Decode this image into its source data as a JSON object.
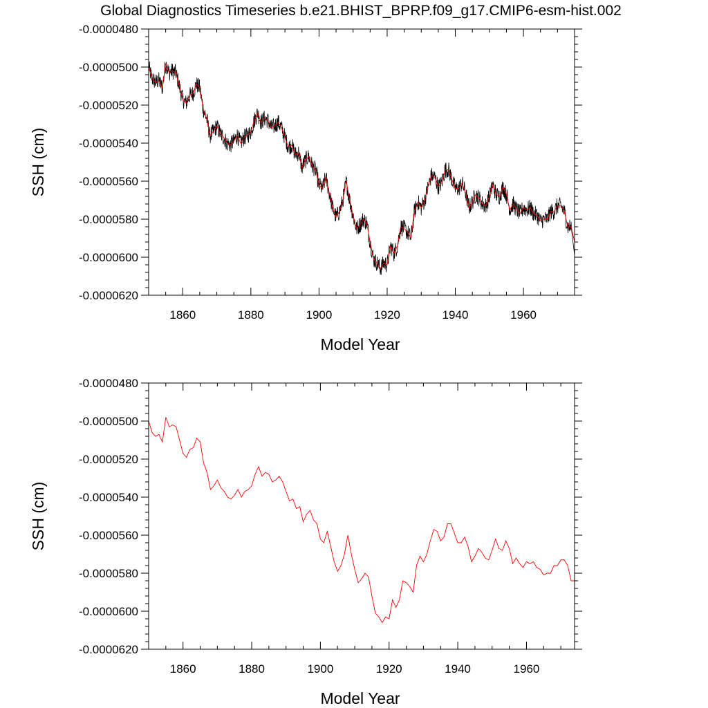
{
  "title": "Global Diagnostics Timeseries b.e21.BHIST_BPRP.f09_g17.CMIP6-esm-hist.002",
  "colors": {
    "monthly": "#000000",
    "annual": "#ff0000",
    "frame": "#000000"
  },
  "chart_data": [
    {
      "type": "line",
      "name": "top-panel",
      "xlabel": "Model Year",
      "ylabel": "SSH (cm)",
      "xlim": [
        1850,
        1975
      ],
      "ylim": [
        -6.2e-05,
        -4.8e-05
      ],
      "xticks": [
        1860,
        1880,
        1900,
        1920,
        1940,
        1960
      ],
      "xtick_labels": [
        "1860",
        "1880",
        "1900",
        "1920",
        "1940",
        "1960"
      ],
      "yticks": [
        -4.8e-05,
        -5e-05,
        -5.2e-05,
        -5.4e-05,
        -5.6e-05,
        -5.8e-05,
        -6e-05,
        -6.2e-05
      ],
      "ytick_labels": [
        "-0.0000480",
        "-0.0000500",
        "-0.0000520",
        "-0.0000540",
        "-0.0000560",
        "-0.0000580",
        "-0.0000600",
        "-0.0000620"
      ],
      "series": [
        {
          "name": "monthly",
          "color": "#000000",
          "note": "monthly values; noisy around annual mean (amplitude ~0.0000005)"
        },
        {
          "name": "annual",
          "color": "#ff0000",
          "note": "same as annual series in bottom panel"
        }
      ]
    },
    {
      "type": "line",
      "name": "bottom-panel",
      "xlabel": "Model Year",
      "ylabel": "SSH (cm)",
      "xlim": [
        1850,
        1974
      ],
      "ylim": [
        -6.2e-05,
        -4.8e-05
      ],
      "xticks": [
        1860,
        1880,
        1900,
        1920,
        1940,
        1960
      ],
      "xtick_labels": [
        "1860",
        "1880",
        "1900",
        "1920",
        "1940",
        "1960"
      ],
      "yticks": [
        -4.8e-05,
        -5e-05,
        -5.2e-05,
        -5.4e-05,
        -5.6e-05,
        -5.8e-05,
        -6e-05,
        -6.2e-05
      ],
      "ytick_labels": [
        "-0.0000480",
        "-0.0000500",
        "-0.0000520",
        "-0.0000540",
        "-0.0000560",
        "-0.0000580",
        "-0.0000600",
        "-0.0000620"
      ],
      "series": [
        {
          "name": "annual",
          "color": "#ff0000",
          "x": [
            1850,
            1851,
            1852,
            1853,
            1854,
            1855,
            1856,
            1857,
            1858,
            1859,
            1860,
            1861,
            1862,
            1863,
            1864,
            1865,
            1866,
            1867,
            1868,
            1869,
            1870,
            1871,
            1872,
            1873,
            1874,
            1875,
            1876,
            1877,
            1878,
            1879,
            1880,
            1881,
            1882,
            1883,
            1884,
            1885,
            1886,
            1887,
            1888,
            1889,
            1890,
            1891,
            1892,
            1893,
            1894,
            1895,
            1896,
            1897,
            1898,
            1899,
            1900,
            1901,
            1902,
            1903,
            1904,
            1905,
            1906,
            1907,
            1908,
            1909,
            1910,
            1911,
            1912,
            1913,
            1914,
            1915,
            1916,
            1917,
            1918,
            1919,
            1920,
            1921,
            1922,
            1923,
            1924,
            1925,
            1926,
            1927,
            1928,
            1929,
            1930,
            1931,
            1932,
            1933,
            1934,
            1935,
            1936,
            1937,
            1938,
            1939,
            1940,
            1941,
            1942,
            1943,
            1944,
            1945,
            1946,
            1947,
            1948,
            1949,
            1950,
            1951,
            1952,
            1953,
            1954,
            1955,
            1956,
            1957,
            1958,
            1959,
            1960,
            1961,
            1962,
            1963,
            1964,
            1965,
            1966,
            1967,
            1968,
            1969,
            1970,
            1971,
            1972,
            1973,
            1974
          ],
          "values": [
            -5e-05,
            -5.06e-05,
            -5.08e-05,
            -5.07e-05,
            -5.11e-05,
            -4.98e-05,
            -5.03e-05,
            -5.02e-05,
            -5.03e-05,
            -5.1e-05,
            -5.17e-05,
            -5.19e-05,
            -5.15e-05,
            -5.14e-05,
            -5.09e-05,
            -5.11e-05,
            -5.22e-05,
            -5.27e-05,
            -5.36e-05,
            -5.34e-05,
            -5.31e-05,
            -5.35e-05,
            -5.37e-05,
            -5.4e-05,
            -5.41e-05,
            -5.39e-05,
            -5.36e-05,
            -5.4e-05,
            -5.37e-05,
            -5.36e-05,
            -5.34e-05,
            -5.28e-05,
            -5.24e-05,
            -5.29e-05,
            -5.27e-05,
            -5.28e-05,
            -5.32e-05,
            -5.31e-05,
            -5.29e-05,
            -5.32e-05,
            -5.37e-05,
            -5.42e-05,
            -5.41e-05,
            -5.46e-05,
            -5.45e-05,
            -5.53e-05,
            -5.49e-05,
            -5.47e-05,
            -5.52e-05,
            -5.54e-05,
            -5.62e-05,
            -5.64e-05,
            -5.58e-05,
            -5.66e-05,
            -5.74e-05,
            -5.79e-05,
            -5.76e-05,
            -5.7e-05,
            -5.6e-05,
            -5.7e-05,
            -5.78e-05,
            -5.85e-05,
            -5.83e-05,
            -5.8e-05,
            -5.82e-05,
            -5.92e-05,
            -6.01e-05,
            -6.03e-05,
            -6.06e-05,
            -6.03e-05,
            -6.04e-05,
            -5.94e-05,
            -5.98e-05,
            -5.94e-05,
            -5.84e-05,
            -5.85e-05,
            -5.87e-05,
            -5.9e-05,
            -5.76e-05,
            -5.71e-05,
            -5.74e-05,
            -5.7e-05,
            -5.63e-05,
            -5.57e-05,
            -5.58e-05,
            -5.63e-05,
            -5.61e-05,
            -5.54e-05,
            -5.54e-05,
            -5.59e-05,
            -5.64e-05,
            -5.64e-05,
            -5.61e-05,
            -5.66e-05,
            -5.74e-05,
            -5.71e-05,
            -5.67e-05,
            -5.69e-05,
            -5.72e-05,
            -5.73e-05,
            -5.68e-05,
            -5.62e-05,
            -5.67e-05,
            -5.68e-05,
            -5.63e-05,
            -5.67e-05,
            -5.75e-05,
            -5.72e-05,
            -5.75e-05,
            -5.77e-05,
            -5.74e-05,
            -5.75e-05,
            -5.74e-05,
            -5.77e-05,
            -5.78e-05,
            -5.81e-05,
            -5.8e-05,
            -5.8e-05,
            -5.76e-05,
            -5.76e-05,
            -5.73e-05,
            -5.73e-05,
            -5.76e-05,
            -5.84e-05,
            -5.84e-05
          ]
        }
      ]
    }
  ]
}
